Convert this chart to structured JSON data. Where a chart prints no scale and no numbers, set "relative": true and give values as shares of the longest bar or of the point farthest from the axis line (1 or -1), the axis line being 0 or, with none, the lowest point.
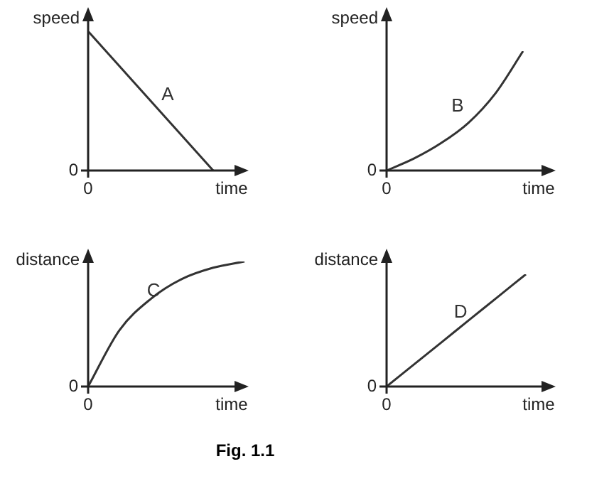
{
  "chart_data": [
    {
      "type": "line",
      "relative": true,
      "xlabel": "time",
      "ylabel": "speed",
      "annotations": [
        "0",
        "0"
      ],
      "marker": "none",
      "categories": [
        null,
        null,
        null,
        null,
        null
      ],
      "series": [
        {
          "name": "A",
          "color": "#333333",
          "values": [
            1,
            0.75,
            0.5,
            0.25,
            0
          ]
        }
      ]
    },
    {
      "type": "line",
      "relative": true,
      "xlabel": "time",
      "ylabel": "speed",
      "annotations": [
        "0",
        "0"
      ],
      "marker": "none",
      "categories": [
        null,
        null,
        null,
        null,
        null,
        null
      ],
      "series": [
        {
          "name": "B",
          "color": "#333333",
          "values": [
            0,
            0.1,
            0.23,
            0.4,
            0.65,
            1
          ]
        }
      ]
    },
    {
      "type": "line",
      "relative": true,
      "xlabel": "time",
      "ylabel": "distance",
      "annotations": [
        "0",
        "0"
      ],
      "marker": "none",
      "categories": [
        null,
        null,
        null,
        null,
        null,
        null
      ],
      "series": [
        {
          "name": "C",
          "color": "#333333",
          "values": [
            0,
            0.45,
            0.7,
            0.86,
            0.95,
            1
          ]
        }
      ]
    },
    {
      "type": "line",
      "relative": true,
      "xlabel": "time",
      "ylabel": "distance",
      "annotations": [
        "0",
        "0"
      ],
      "marker": "none",
      "categories": [
        null,
        null,
        null,
        null,
        null,
        null
      ],
      "series": [
        {
          "name": "D",
          "color": "#333333",
          "values": [
            0,
            0.2,
            0.4,
            0.6,
            0.8,
            1
          ]
        }
      ]
    },
    {
      "type": "other",
      "title": "Fig. 1.1"
    }
  ]
}
